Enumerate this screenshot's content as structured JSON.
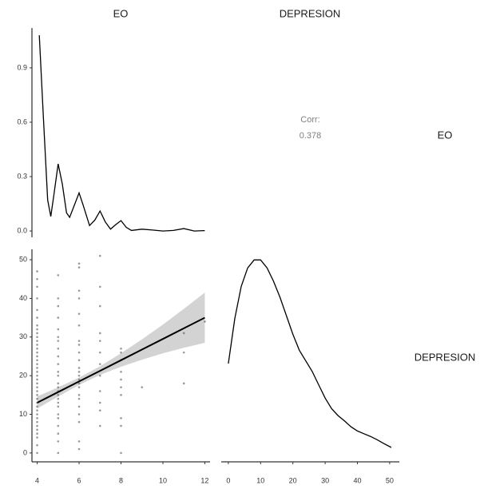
{
  "panel_labels": {
    "columns": [
      "EO",
      "DEPRESION"
    ],
    "rows": [
      "EO",
      "DEPRESION"
    ]
  },
  "chart_data": [
    {
      "type": "density",
      "color": "#000000",
      "x": [
        4.1,
        4.3,
        4.5,
        4.65,
        4.8,
        5.0,
        5.2,
        5.4,
        5.55,
        5.8,
        6.0,
        6.2,
        6.5,
        6.75,
        7.0,
        7.25,
        7.5,
        7.75,
        8.0,
        8.25,
        8.5,
        9.0,
        9.5,
        10.0,
        10.5,
        11.0,
        11.5,
        12.0
      ],
      "values": [
        1.08,
        0.62,
        0.17,
        0.08,
        0.2,
        0.37,
        0.26,
        0.1,
        0.075,
        0.15,
        0.21,
        0.14,
        0.03,
        0.06,
        0.11,
        0.05,
        0.01,
        0.035,
        0.057,
        0.02,
        0.003,
        0.01,
        0.005,
        0.0,
        0.003,
        0.013,
        0.0,
        0.002
      ],
      "xlim": [
        3.75,
        12.25
      ],
      "ylim": [
        -0.035,
        1.12
      ],
      "yticks": [
        {
          "value": 0,
          "label": "0.0"
        },
        0.3,
        0.6,
        0.9
      ]
    },
    {
      "type": "correlation",
      "label": "Corr:",
      "value": 0.378,
      "color": "#808080"
    },
    {
      "type": "scatter",
      "color": "#555555",
      "x": [
        4,
        4,
        4,
        4,
        4,
        4,
        4,
        4,
        4,
        4,
        4,
        4,
        4,
        4,
        4,
        4,
        4,
        4,
        4,
        4,
        4,
        4,
        4,
        4,
        4,
        4,
        4,
        4,
        4,
        4,
        4,
        4,
        4,
        4,
        4,
        4,
        4,
        4,
        5,
        5,
        5,
        5,
        5,
        5,
        5,
        5,
        5,
        5,
        5,
        5,
        5,
        5,
        5,
        5,
        5,
        5,
        5,
        5,
        5,
        5,
        5,
        5,
        5,
        6,
        6,
        6,
        6,
        6,
        6,
        6,
        6,
        6,
        6,
        6,
        6,
        6,
        6,
        6,
        6,
        6,
        6,
        6,
        6,
        6,
        6,
        6,
        7,
        7,
        7,
        7,
        7,
        7,
        7,
        7,
        7,
        7,
        7,
        7,
        8,
        8,
        8,
        8,
        8,
        8,
        8,
        8,
        8,
        8,
        9,
        11,
        11,
        11,
        12
      ],
      "values": [
        0,
        2,
        4,
        5,
        6,
        7,
        8,
        9,
        10,
        11,
        12,
        13,
        14,
        15,
        16,
        17,
        18,
        19,
        20,
        21,
        22,
        23,
        24,
        25,
        26,
        27,
        28,
        29,
        30,
        31,
        32,
        33,
        35,
        37,
        40,
        43,
        45,
        47,
        0,
        3,
        5,
        7,
        9,
        10,
        12,
        13,
        14,
        15,
        16,
        17,
        18,
        20,
        21,
        23,
        25,
        27,
        29,
        30,
        32,
        35,
        38,
        40,
        46,
        1,
        3,
        8,
        10,
        12,
        14,
        15,
        17,
        18,
        19,
        20,
        21,
        22,
        24,
        26,
        28,
        29,
        33,
        36,
        40,
        42,
        48,
        49,
        7,
        11,
        13,
        16,
        20,
        23,
        26,
        29,
        31,
        38,
        43,
        51,
        0,
        7,
        9,
        15,
        17,
        19,
        21,
        24,
        26,
        27,
        17,
        18,
        26,
        31,
        34
      ],
      "fit": {
        "color": "#000000",
        "band_color": "#d3d3d3",
        "x": [
          4,
          5,
          6,
          7,
          8,
          9,
          10,
          11,
          12
        ],
        "values": [
          13,
          15.75,
          18.5,
          21.25,
          24,
          26.75,
          29.5,
          32.25,
          35
        ],
        "lower": [
          11.5,
          14.6,
          17.6,
          20.2,
          22.3,
          24.1,
          25.8,
          27.2,
          28.5
        ],
        "upper": [
          14.6,
          17,
          19.5,
          22.4,
          25.8,
          29.4,
          33.2,
          37.3,
          41.5
        ]
      },
      "xlim": [
        3.75,
        12.25
      ],
      "ylim": [
        -2.3,
        52.7
      ],
      "xticks": [
        4,
        6,
        8,
        10,
        12
      ],
      "yticks": [
        0,
        10,
        20,
        30,
        40,
        50
      ]
    },
    {
      "type": "density",
      "color": "#000000",
      "x": [
        0,
        2,
        4,
        6,
        8,
        10,
        12,
        14,
        16,
        18,
        20,
        22,
        24,
        26,
        28,
        30,
        32,
        34,
        36,
        38,
        40,
        42,
        44,
        46,
        48,
        50.5
      ],
      "values": [
        0.0185,
        0.027,
        0.033,
        0.0365,
        0.038,
        0.038,
        0.0365,
        0.034,
        0.031,
        0.0275,
        0.024,
        0.021,
        0.019,
        0.017,
        0.0145,
        0.012,
        0.01,
        0.0087,
        0.0077,
        0.0066,
        0.0058,
        0.0053,
        0.0048,
        0.0042,
        0.0035,
        0.0027
      ],
      "xlim": [
        -2.2,
        53
      ],
      "ylim": [
        0,
        0.04
      ],
      "xticks": [
        0,
        10,
        20,
        30,
        40,
        50
      ]
    }
  ]
}
